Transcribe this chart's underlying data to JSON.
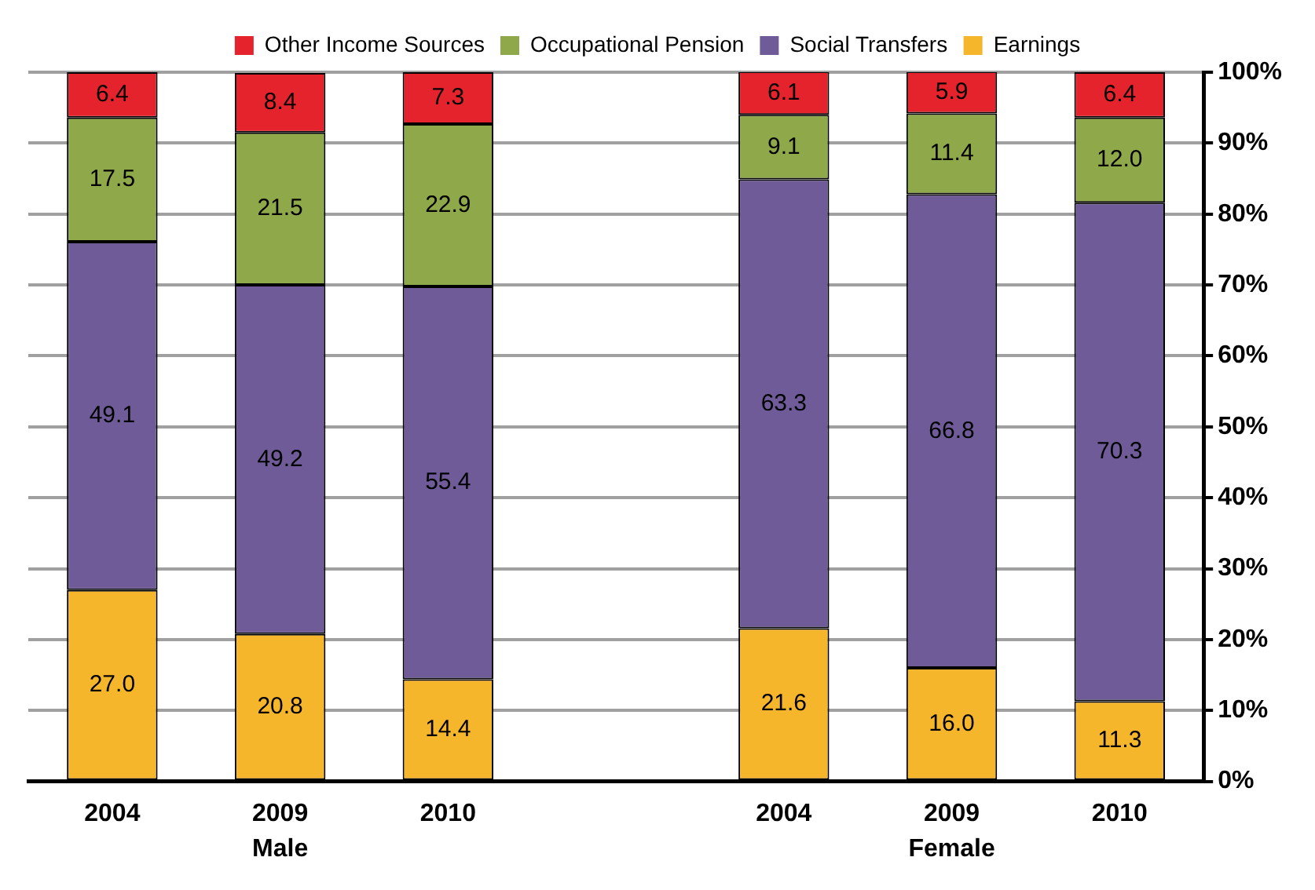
{
  "chart_data": {
    "type": "bar",
    "stacked": true,
    "categories": [
      "2004",
      "2009",
      "2010",
      null,
      "2004",
      "2009",
      "2010"
    ],
    "series": [
      {
        "name": "Earnings",
        "color": "#f6b62c",
        "values": [
          27.0,
          20.8,
          14.4,
          null,
          21.6,
          16.0,
          11.3
        ],
        "value_labels": [
          "27.0",
          "20.8",
          "14.4",
          null,
          "21.6",
          "16.0",
          "11.3"
        ]
      },
      {
        "name": "Social Transfers",
        "color": "#6f5b97",
        "values": [
          49.1,
          49.2,
          55.4,
          null,
          63.3,
          66.8,
          70.3
        ],
        "value_labels": [
          "49.1",
          "49.2",
          "55.4",
          null,
          "63.3",
          "66.8",
          "70.3"
        ]
      },
      {
        "name": "Occupational Pension",
        "color": "#8ea84a",
        "values": [
          17.5,
          21.5,
          22.9,
          null,
          9.1,
          11.4,
          12.0
        ],
        "value_labels": [
          "17.5",
          "21.5",
          "22.9",
          null,
          "9.1",
          "11.4",
          "12.0"
        ]
      },
      {
        "name": "Other Income Sources",
        "color": "#e5232d",
        "values": [
          6.4,
          8.4,
          7.3,
          null,
          6.1,
          5.9,
          6.4
        ],
        "value_labels": [
          "6.4",
          "8.4",
          "7.3",
          null,
          "6.1",
          "5.9",
          "6.4"
        ]
      }
    ],
    "ylim": [
      0,
      100
    ],
    "yticks": [
      {
        "value": 0,
        "label": "0%"
      },
      {
        "value": 10,
        "label": "10%"
      },
      {
        "value": 20,
        "label": "20%"
      },
      {
        "value": 30,
        "label": "30%"
      },
      {
        "value": 40,
        "label": "40%"
      },
      {
        "value": 50,
        "label": "50%"
      },
      {
        "value": 60,
        "label": "60%"
      },
      {
        "value": 70,
        "label": "70%"
      },
      {
        "value": 80,
        "label": "80%"
      },
      {
        "value": 90,
        "label": "90%"
      },
      {
        "value": 100,
        "label": "100%"
      }
    ],
    "grid": "y",
    "legend": "top",
    "annotations": [
      "Male",
      "Female"
    ]
  }
}
